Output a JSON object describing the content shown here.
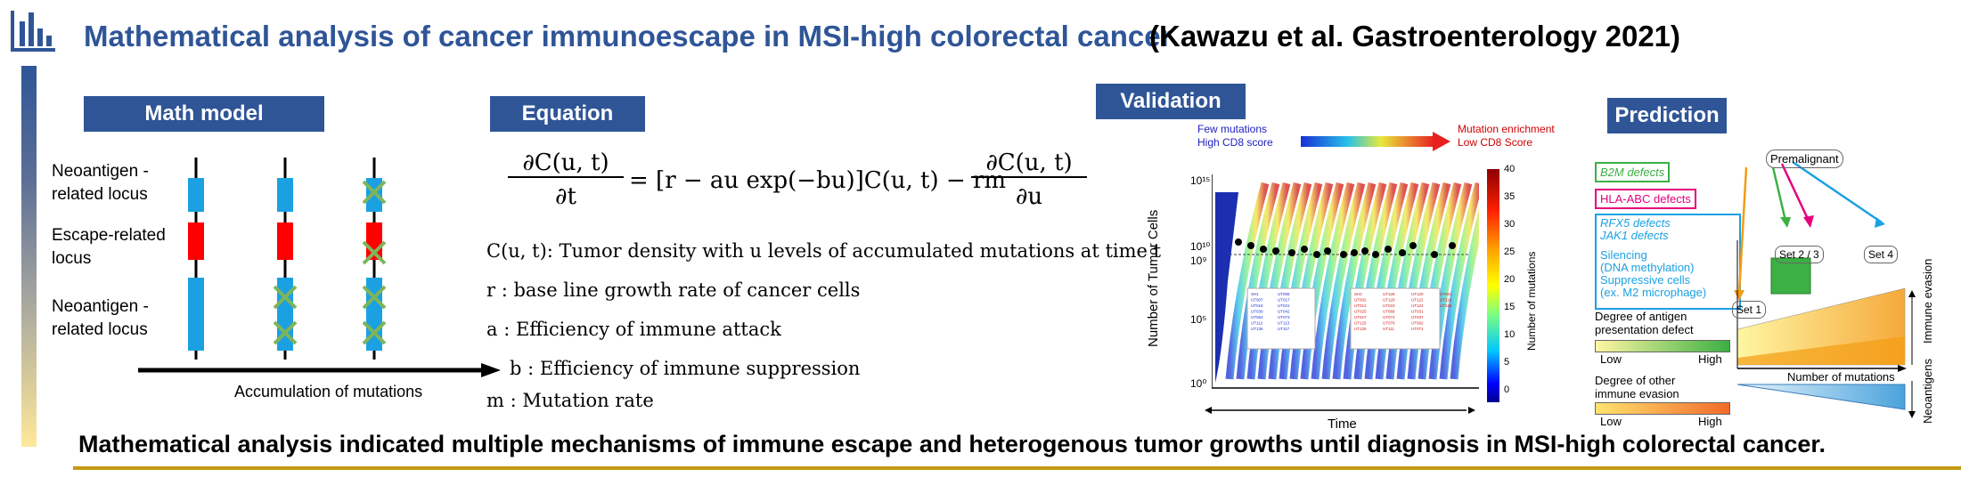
{
  "header": {
    "title": "Mathematical analysis of cancer immunoescape in MSI-high colorectal cancer",
    "reference": "(Kawazu et al. Gastroenterology 2021)",
    "logo_icon": "bar-chart-icon"
  },
  "math_model": {
    "heading": "Math model",
    "labels": [
      "Neoantigen -related locus",
      "Escape-related locus",
      "Neoantigen -related locus"
    ],
    "axis_label": "Accumulation of mutations",
    "colors": {
      "neoantigen": "#1ba1e2",
      "escape": "#ff0000",
      "cross": "#7fb55a"
    }
  },
  "equation": {
    "heading": "Equation",
    "lhs_num": "∂C(u, t)",
    "lhs_den": "∂t",
    "mid": "= [r − au exp(−bu)]C(u, t) − rm",
    "rhs_num": "∂C(u, t)",
    "rhs_den": "∂u",
    "defs": [
      "C(u, t): Tumor density with u levels of accumulated mutations at time t",
      "r : base line growth rate of cancer cells",
      "a : Efficiency of immune attack",
      "b : Efficiency of immune suppression",
      "m : Mutation rate"
    ]
  },
  "validation": {
    "heading": "Validation",
    "left_note": [
      "Few mutations",
      "High CD8 score"
    ],
    "right_note": [
      "Mutation enrichment",
      "Low CD8 Score"
    ],
    "ylabel": "Number of Tumor Cells",
    "xlabel": "Time",
    "colorbar_label": "Number of mutations",
    "y_ticks": [
      "10¹⁵",
      "10¹⁰",
      "10⁹",
      "10⁵",
      "10⁰"
    ],
    "colorbar_ticks": [
      "40",
      "35",
      "30",
      "25",
      "20",
      "15",
      "10",
      "5",
      "0"
    ],
    "sample_ids_blue": [
      "SH1",
      "UT007",
      "UT018",
      "UT030",
      "UT064",
      "UT112",
      "UT136",
      "UT005",
      "UT017",
      "UT021",
      "UT042",
      "UT073",
      "UT113",
      "UT117"
    ],
    "sample_ids_red": [
      "SH4",
      "UT002",
      "UT012",
      "UT025",
      "UT027",
      "UT125",
      "UT126",
      "UT128",
      "UT129",
      "UT023",
      "UT068",
      "UT072",
      "UT079",
      "UT111",
      "UT120",
      "UT122",
      "UT124",
      "UT031",
      "UT037",
      "UT062",
      "UT071",
      "UT081",
      "UT116",
      "UT118"
    ]
  },
  "prediction": {
    "heading": "Prediction",
    "defects": {
      "b2m": "B2M defects",
      "hla": "HLA-ABC defects",
      "rfx5": "RFX5 defects",
      "jak1": "JAK1 defects",
      "silencing": "Silencing",
      "dna_meth": "(DNA methylation)",
      "suppressive": "Suppressive cells",
      "m2": "(ex. M2 microphage)"
    },
    "premalignant": "Premalignant",
    "set1": "Set 1",
    "set23": "Set 2 / 3",
    "set4": "Set 4",
    "antigen_title": [
      "Degree of antigen",
      "presentation defect"
    ],
    "other_title": [
      "Degree of other",
      "immune evasion"
    ],
    "low": "Low",
    "high": "High",
    "xlabel": "Number of mutations",
    "immune_evasion": "Immune evasion",
    "neoantigens": "Neoantigens",
    "colors": {
      "green": "#3cb043",
      "magenta": "#e6007e",
      "blue": "#1ba1e2",
      "orange": "#f39c12"
    }
  },
  "conclusion": "Mathematical analysis indicated multiple mechanisms of immune escape and heterogenous tumor growths until diagnosis in MSI-high colorectal cancer."
}
